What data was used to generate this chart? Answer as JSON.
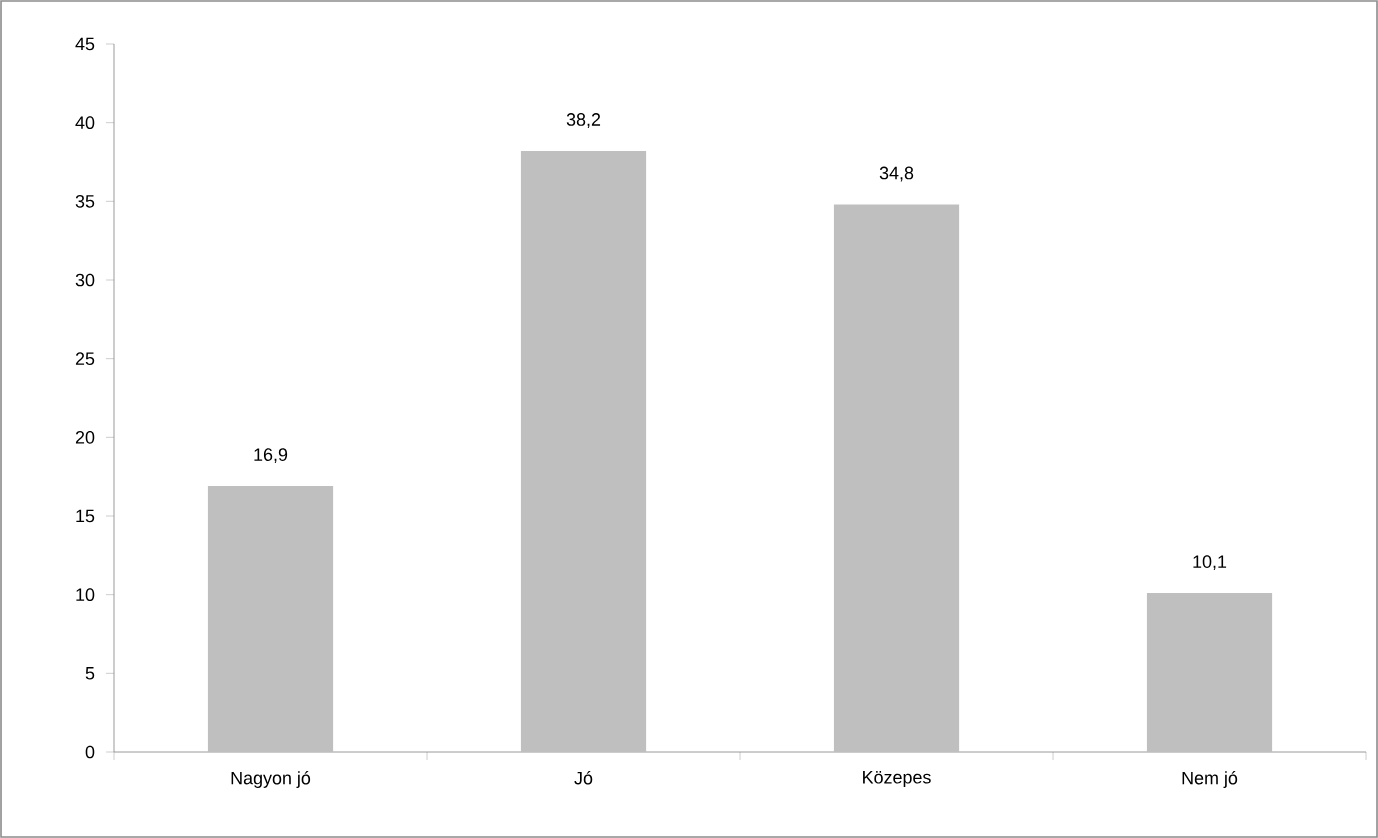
{
  "chart_data": {
    "type": "bar",
    "categories": [
      "Nagyon jó",
      "Jó",
      "Közepes",
      "Nem jó"
    ],
    "values": [
      16.9,
      38.2,
      34.8,
      10.1
    ],
    "value_labels": [
      "16,9",
      "38,2",
      "34,8",
      "10,1"
    ],
    "color": "#bfbfbf",
    "ylim": [
      0,
      45
    ],
    "yticks": [
      0,
      5,
      10,
      15,
      20,
      25,
      30,
      35,
      40,
      45
    ]
  }
}
